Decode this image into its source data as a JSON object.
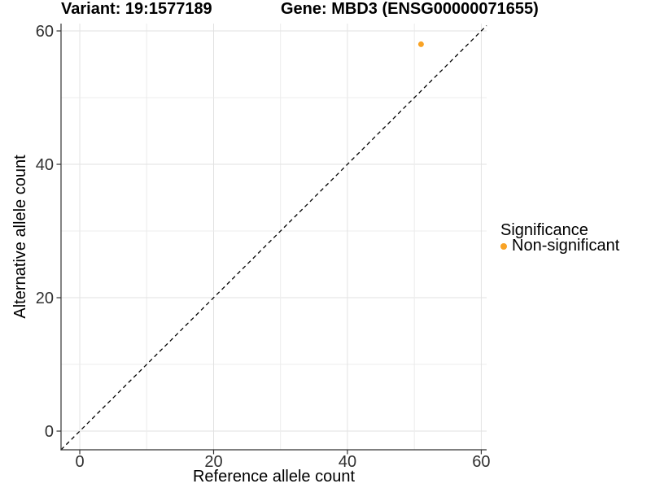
{
  "chart_data": {
    "type": "scatter",
    "titles": {
      "left": "Variant: 19:1577189",
      "right": "Gene: MBD3 (ENSG00000071655)"
    },
    "xlabel": "Reference allele count",
    "ylabel": "Alternative allele count",
    "xlim": [
      -2.8,
      60.8
    ],
    "ylim": [
      -2.8,
      61.1
    ],
    "xticks": [
      0,
      20,
      40,
      60
    ],
    "yticks": [
      0,
      20,
      40,
      60
    ],
    "grid": true,
    "grid_step": 10,
    "series": [
      {
        "name": "Non-significant",
        "color": "#F9A325",
        "points": [
          {
            "x": 51,
            "y": 58
          }
        ]
      }
    ],
    "reference_line": {
      "type": "identity",
      "equation": "y = x",
      "style": "dashed",
      "color": "#000000"
    },
    "legend": {
      "title": "Significance",
      "position": "right",
      "items": [
        {
          "label": "Non-significant",
          "color": "#F9A325"
        }
      ]
    },
    "colors": {
      "background": "#FFFFFF",
      "grid_major": "#E2E2E2",
      "grid_minor": "#ECECEC",
      "axis_line": "#333333",
      "tick_text": "#303030",
      "title_text": "#000000"
    }
  }
}
